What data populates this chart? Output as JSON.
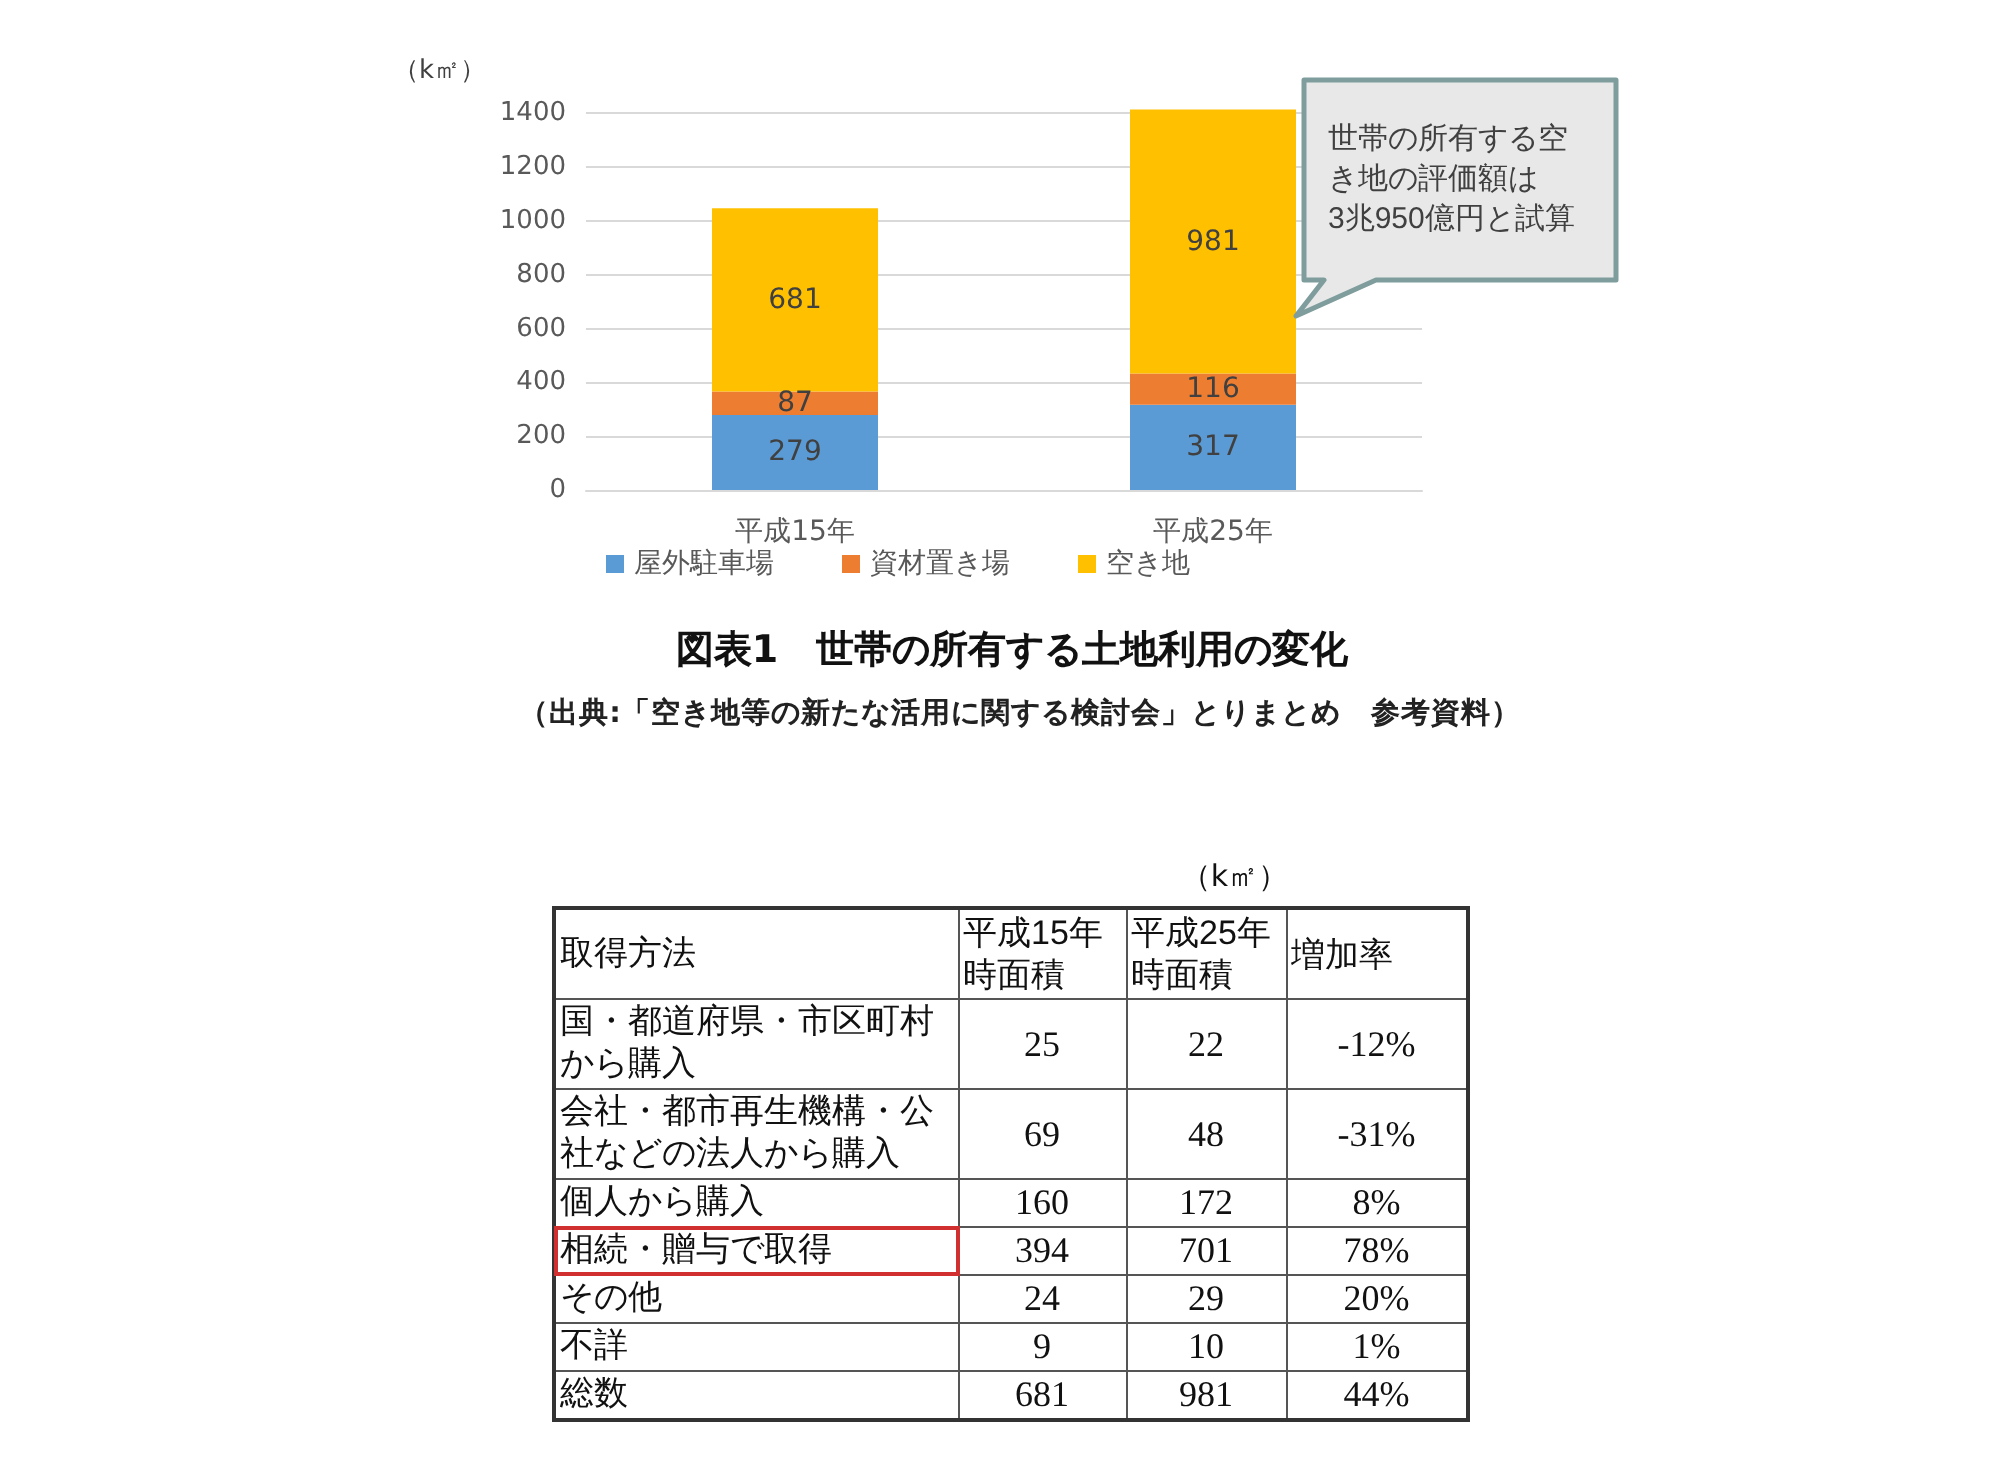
{
  "chart_data": [
    {
      "type": "bar",
      "title": "図表1　世帯の所有する土地利用の変化",
      "ylabel": "（k㎡）",
      "categories": [
        "平成15年",
        "平成25年"
      ],
      "series": [
        {
          "name": "屋外駐車場",
          "color": "#5b9bd5",
          "values": [
            279,
            317
          ]
        },
        {
          "name": "資材置き場",
          "color": "#ed7d31",
          "values": [
            87,
            116
          ]
        },
        {
          "name": "空き地",
          "color": "#ffc000",
          "values": [
            681,
            981
          ]
        }
      ],
      "stacked": true,
      "ylim": [
        0,
        1420
      ],
      "yticks": [
        0,
        200,
        400,
        600,
        800,
        1000,
        1200,
        1400
      ],
      "grid": "y",
      "legend": "bottom",
      "data_labels": true,
      "annotations": [
        "世帯の所有する空き地の評価額は3兆950億円と試算",
        "（出典:「空き地等の新たな活用に関する検討会」とりまとめ　参考資料）"
      ]
    },
    {
      "type": "other",
      "ylabel": "取得方法",
      "categories": [
        "平成15年時面積",
        "平成25年時面積",
        "増加率"
      ],
      "y_categories": [
        "国・都道府県・市区町村から購入",
        "会社・都市再生機構・公社などの法人から購入",
        "個人から購入",
        "相続・贈与で取得",
        "その他",
        "不詳",
        "総数"
      ],
      "cell_labels": [
        [
          "25",
          "22",
          "-12%"
        ],
        [
          "69",
          "48",
          "-31%"
        ],
        [
          "160",
          "172",
          "8%"
        ],
        [
          "394",
          "701",
          "78%"
        ],
        [
          "24",
          "29",
          "20%"
        ],
        [
          "9",
          "10",
          "1%"
        ],
        [
          "681",
          "981",
          "44%"
        ]
      ],
      "annotations": [
        "（k㎡）"
      ]
    }
  ]
}
